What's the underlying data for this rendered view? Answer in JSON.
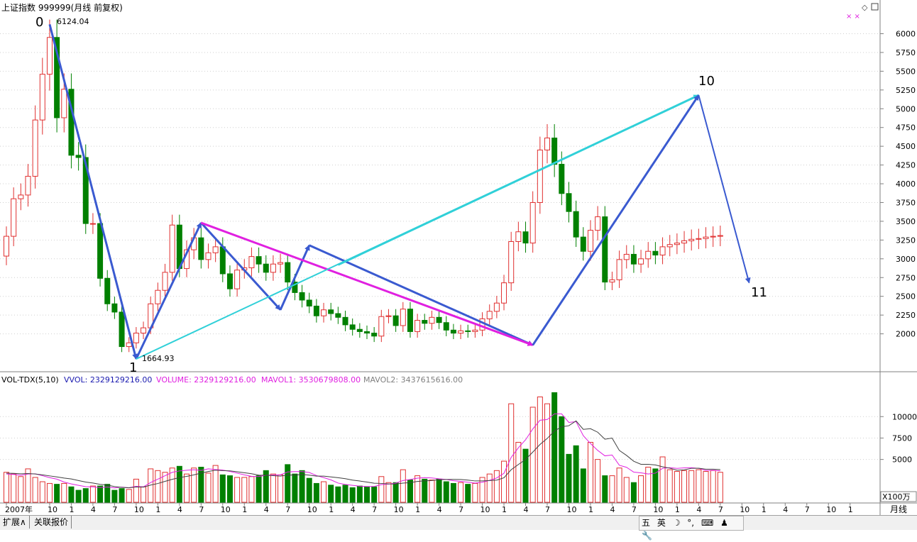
{
  "header": {
    "title": "上证指数 999999(月线 前复权)"
  },
  "volume_header": {
    "indicator": "VOL-TDX(5,10)",
    "vvol": "VVOL: 2329129216.00",
    "volume": "VOLUME: 2329129216.00",
    "mavol1": "MAVOL1: 3530679808.00",
    "mavol2": "MAVOL2: 3437615616.00"
  },
  "annotations": {
    "high_label": "6124.04",
    "low_label": "1664.93",
    "wave0": "0",
    "wave1": "1",
    "wave10": "10",
    "wave11": "11"
  },
  "axis": {
    "volume_unit": "X100万",
    "period": "月线"
  },
  "tabs": [
    "扩展∧",
    "关联报价"
  ],
  "ime": [
    "五",
    "英",
    "☽",
    "°,",
    "⌨",
    "♟",
    "🔧"
  ],
  "colors": {
    "up": "#e03030",
    "down": "#008000",
    "wave_blue": "#3a5ad0",
    "wave_cyan": "#30d0d8",
    "wave_magenta": "#e020e0",
    "mavol1": "#e020e0",
    "mavol2": "#404040"
  },
  "chart_data": {
    "type": "candlestick",
    "y_ticks": [
      2000,
      2250,
      2500,
      2750,
      3000,
      3250,
      3500,
      3750,
      4000,
      4250,
      4500,
      4750,
      5000,
      5250,
      5500,
      5750,
      6000
    ],
    "ylim": [
      1580,
      6260
    ],
    "volume_ticks": [
      5000,
      7500,
      10000
    ],
    "volume_ylim": [
      0,
      13500
    ],
    "x_labels": [
      {
        "i": 0,
        "label": "2007年"
      },
      {
        "i": 6,
        "label": "10"
      },
      {
        "i": 9,
        "label": "1"
      },
      {
        "i": 12,
        "label": "4"
      },
      {
        "i": 15,
        "label": "7"
      },
      {
        "i": 18,
        "label": "10"
      },
      {
        "i": 21,
        "label": "1"
      },
      {
        "i": 24,
        "label": "4"
      },
      {
        "i": 27,
        "label": "7"
      },
      {
        "i": 30,
        "label": "10"
      },
      {
        "i": 33,
        "label": "1"
      },
      {
        "i": 36,
        "label": "4"
      },
      {
        "i": 39,
        "label": "7"
      },
      {
        "i": 42,
        "label": "10"
      },
      {
        "i": 45,
        "label": "1"
      },
      {
        "i": 48,
        "label": "4"
      },
      {
        "i": 51,
        "label": "7"
      },
      {
        "i": 54,
        "label": "10"
      },
      {
        "i": 57,
        "label": "1"
      },
      {
        "i": 60,
        "label": "4"
      },
      {
        "i": 63,
        "label": "7"
      },
      {
        "i": 66,
        "label": "10"
      },
      {
        "i": 69,
        "label": "1"
      },
      {
        "i": 72,
        "label": "4"
      },
      {
        "i": 75,
        "label": "7"
      },
      {
        "i": 78,
        "label": "10"
      },
      {
        "i": 81,
        "label": "1"
      },
      {
        "i": 84,
        "label": "4"
      },
      {
        "i": 87,
        "label": "7"
      },
      {
        "i": 90,
        "label": "10"
      },
      {
        "i": 93,
        "label": "1"
      },
      {
        "i": 96,
        "label": "4"
      },
      {
        "i": 99,
        "label": "7"
      },
      {
        "i": 102,
        "label": "10"
      },
      {
        "i": 105,
        "label": "1"
      },
      {
        "i": 108,
        "label": "4"
      },
      {
        "i": 111,
        "label": "7"
      },
      {
        "i": 114,
        "label": "10"
      },
      {
        "i": 117,
        "label": "1"
      }
    ],
    "close": [
      3300,
      3800,
      3850,
      4100,
      4850,
      5460,
      5950,
      4880,
      5260,
      4380,
      4350,
      3470,
      3470,
      2740,
      2400,
      2290,
      1830,
      1880,
      2010,
      2080,
      2400,
      2580,
      2820,
      3450,
      2870,
      3120,
      3280,
      2990,
      3080,
      3160,
      2800,
      2600,
      2850,
      2880,
      3030,
      2930,
      2820,
      2930,
      2950,
      2690,
      2550,
      2450,
      2370,
      2240,
      2320,
      2270,
      2220,
      2120,
      2060,
      2030,
      2010,
      1970,
      2230,
      2240,
      2110,
      2330,
      2030,
      2180,
      2140,
      2220,
      2150,
      2050,
      2010,
      2040,
      2030,
      2050,
      2200,
      2300,
      2410,
      2680,
      3230,
      3360,
      3210,
      3750,
      4450,
      4610,
      4260,
      3870,
      3630,
      3290,
      3100,
      3380,
      3560,
      2690,
      2720,
      2990,
      3060,
      2930,
      3000,
      3100,
      3050,
      3160,
      3190,
      3210,
      3240,
      3260,
      3270,
      3290,
      3300,
      3310
    ],
    "volume": [
      3500,
      3300,
      3000,
      3900,
      2900,
      2400,
      2200,
      2100,
      2200,
      1800,
      1400,
      1600,
      1900,
      1900,
      2100,
      1400,
      1600,
      1500,
      2700,
      1800,
      3900,
      3700,
      3500,
      4000,
      4200,
      3300,
      4000,
      4100,
      3400,
      4300,
      3200,
      3100,
      2900,
      2900,
      3000,
      3100,
      3700,
      3300,
      3200,
      4400,
      3300,
      3700,
      2800,
      2200,
      2400,
      2000,
      1800,
      2000,
      1700,
      1900,
      1800,
      1800,
      3000,
      2300,
      2300,
      3800,
      2600,
      3100,
      2700,
      2600,
      2700,
      2400,
      2200,
      2300,
      2100,
      2200,
      2900,
      3300,
      3700,
      4800,
      11500,
      7000,
      6200,
      11100,
      12300,
      11500,
      12800,
      10000,
      5600,
      6600,
      3900,
      7000,
      5000,
      3100,
      3100,
      4000,
      2900,
      2300,
      3100,
      4100,
      3900,
      5300,
      3800,
      3600,
      3700,
      3700,
      3800,
      3600,
      3700,
      3500
    ],
    "mavol1": [
      3300,
      3250,
      3150,
      3300,
      3320,
      3100,
      2880,
      2700,
      2360,
      2140,
      1980,
      1820,
      1800,
      1720,
      1780,
      1680,
      1770,
      1700,
      1860,
      1800,
      2300,
      2700,
      3100,
      3500,
      3660,
      3740,
      3800,
      3720,
      3900,
      3820,
      3760,
      3600,
      3400,
      3200,
      3020,
      3000,
      3160,
      3180,
      3200,
      3540,
      3580,
      3580,
      3480,
      3120,
      2880,
      2620,
      2240,
      2080,
      1980,
      1880,
      1840,
      1840,
      2060,
      2120,
      2240,
      2540,
      2660,
      2820,
      2880,
      2840,
      2740,
      2660,
      2520,
      2440,
      2340,
      2240,
      2340,
      2560,
      2840,
      3380,
      5240,
      6360,
      7300,
      8560,
      9580,
      9660,
      10320,
      10320,
      9320,
      9420,
      7780,
      6860,
      6060,
      5420,
      5520,
      4320,
      4080,
      3520,
      3440,
      3300,
      3400,
      3960,
      4040,
      3960,
      4020,
      4040,
      3960,
      3720,
      3740,
      3660
    ],
    "mavol2": [
      3400,
      3380,
      3320,
      3350,
      3300,
      3200,
      3080,
      2960,
      2830,
      2720,
      2540,
      2360,
      2250,
      2090,
      2010,
      1830,
      1740,
      1690,
      1790,
      1770,
      2010,
      2190,
      2440,
      2680,
      2880,
      3020,
      3200,
      3410,
      3590,
      3750,
      3700,
      3670,
      3560,
      3450,
      3330,
      3170,
      3160,
      3110,
      3050,
      3180,
      3180,
      3250,
      3170,
      3050,
      3050,
      2960,
      2870,
      2750,
      2590,
      2480,
      2360,
      2230,
      2200,
      2140,
      2130,
      2240,
      2300,
      2430,
      2510,
      2540,
      2640,
      2660,
      2670,
      2660,
      2590,
      2490,
      2500,
      2540,
      2590,
      2860,
      3800,
      4410,
      5000,
      5860,
      6750,
      7450,
      8320,
      8810,
      8940,
      9500,
      8510,
      8590,
      8180,
      7360,
      7490,
      6050,
      5470,
      4790,
      4430,
      4430,
      4360,
      4140,
      3980,
      3740,
      3790,
      3960,
      3980,
      3860,
      3860,
      3820
    ]
  }
}
